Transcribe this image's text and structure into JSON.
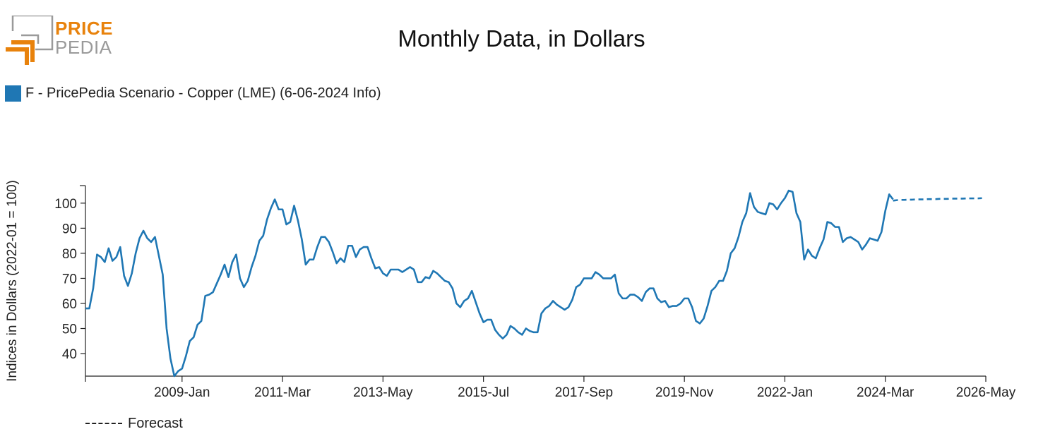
{
  "logo": {
    "top_text": "PRICE",
    "bottom_text": "PEDIA"
  },
  "colors": {
    "series": "#1f77b4",
    "logo_orange": "#e8820c",
    "logo_gray": "#9a9a9a"
  },
  "chart_data": {
    "type": "line",
    "title": "Monthly Data, in Dollars",
    "ylabel": "Indices in Dollars (2022-01 = 100)",
    "xlabel": "",
    "ylim": [
      31,
      107
    ],
    "yticks": [
      40,
      50,
      60,
      70,
      80,
      90,
      100
    ],
    "xlim": [
      "2006-12",
      "2026-05"
    ],
    "xticks": [
      "2009-Jan",
      "2011-Mar",
      "2013-May",
      "2015-Jul",
      "2017-Sep",
      "2019-Nov",
      "2022-Jan",
      "2024-Mar",
      "2026-May"
    ],
    "legend_position": "top-left",
    "grid": false,
    "forecast_label": "Forecast",
    "series": [
      {
        "name": "F - PricePedia Scenario - Copper (LME) (6-06-2024 Info)",
        "style": "solid",
        "start": "2006-12",
        "values": [
          58,
          58,
          66,
          79.5,
          78.5,
          76.5,
          82,
          77,
          78.5,
          82.5,
          71,
          67,
          72,
          80,
          86,
          89,
          86,
          84.5,
          86.5,
          79,
          71.5,
          50,
          38,
          31,
          33,
          34,
          39,
          45,
          46.5,
          51.5,
          53,
          63,
          63.5,
          64.5,
          68,
          71.5,
          75.5,
          70.5,
          76.5,
          79.5,
          70,
          66.5,
          69,
          74.5,
          79,
          85,
          87,
          93.5,
          98,
          101.5,
          97.5,
          97.5,
          91.5,
          92.5,
          99,
          93,
          85.5,
          75.5,
          77.5,
          77.5,
          82.5,
          86.5,
          86.5,
          84.5,
          80.5,
          76,
          78,
          76.5,
          83,
          83,
          78.5,
          81.5,
          82.5,
          82.5,
          78,
          74,
          74.5,
          72,
          71,
          73.5,
          73.5,
          73.5,
          72.5,
          73.5,
          74.5,
          73.5,
          68.5,
          68.5,
          70.5,
          70,
          73,
          72,
          70.5,
          69,
          68.5,
          66,
          60,
          58.5,
          61,
          62,
          65,
          60.5,
          56,
          52.5,
          53.5,
          53.5,
          49.5,
          47.5,
          46,
          47.5,
          51,
          50,
          48.5,
          47.5,
          50,
          49,
          48.5,
          48.5,
          56,
          58,
          59,
          61,
          59.5,
          58.5,
          57.5,
          58.5,
          61.5,
          66.5,
          67.5,
          70,
          70,
          70,
          72.5,
          71.5,
          70,
          70,
          70,
          71.5,
          64,
          62,
          62,
          63.5,
          63.5,
          62.5,
          61,
          64.5,
          66,
          66,
          62,
          60.5,
          61,
          58.5,
          59,
          59,
          60,
          62,
          62,
          58.5,
          53,
          52,
          54,
          59,
          65,
          66.5,
          69,
          69,
          73,
          80,
          82,
          86.5,
          92.5,
          96,
          104,
          98.5,
          96.5,
          96,
          95.5,
          100,
          99.5,
          97.5,
          100,
          102,
          105,
          104.5,
          96,
          92.5,
          77.5,
          81.5,
          79,
          78,
          82,
          85.5,
          92.5,
          92,
          90.5,
          90.5,
          84.5,
          86,
          86.5,
          85.5,
          84.5,
          81.5,
          83.5,
          86,
          85.5,
          85,
          88.5,
          97,
          103.5,
          101.5
        ]
      },
      {
        "name": "Forecast",
        "style": "dashed",
        "start": "2024-05",
        "values": [
          101,
          101.2,
          101.3,
          101.3,
          101.4,
          101.4,
          101.5,
          101.5,
          101.5,
          101.6,
          101.6,
          101.6,
          101.7,
          101.7,
          101.7,
          101.8,
          101.8,
          101.8,
          101.8,
          101.9,
          101.9,
          101.9,
          101.9,
          102
        ]
      }
    ]
  }
}
